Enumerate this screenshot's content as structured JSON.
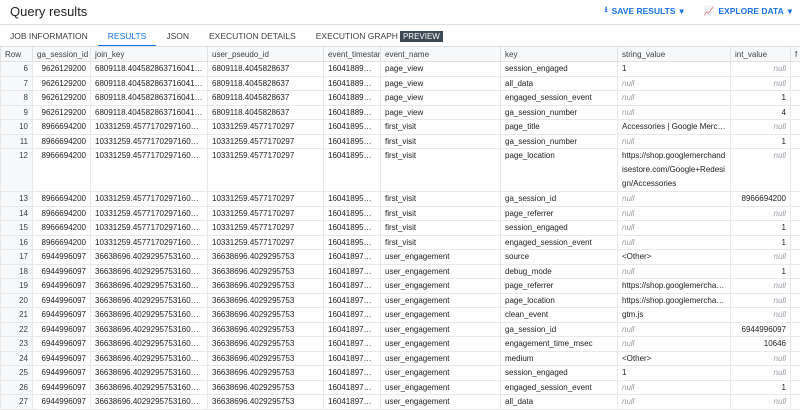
{
  "header": {
    "title": "Query results",
    "save_results": "SAVE RESULTS",
    "explore_data": "EXPLORE DATA"
  },
  "colors": {
    "accent": "#1a73e8",
    "badge": "#3c4a55"
  },
  "tabs": [
    "JOB INFORMATION",
    "RESULTS",
    "JSON",
    "EXECUTION DETAILS",
    "EXECUTION GRAPH"
  ],
  "tab_badge": "PREVIEW",
  "active_tab": "RESULTS",
  "columns": [
    "Row",
    "ga_session_id",
    "join_key",
    "user_pseudo_id",
    "event_timestam",
    "event_name",
    "key",
    "string_value",
    "int_value",
    "f"
  ],
  "rows": [
    [
      "6",
      "9626129200",
      "6809118.40458286371604188…",
      "6809118.4045828637",
      "160418893…",
      "page_view",
      "session_engaged",
      "1",
      "null"
    ],
    [
      "7",
      "9626129200",
      "6809118.40458286371604188…",
      "6809118.4045828637",
      "160418893…",
      "page_view",
      "all_data",
      "null",
      "null"
    ],
    [
      "8",
      "9626129200",
      "6809118.40458286371604188…",
      "6809118.4045828637",
      "160418893…",
      "page_view",
      "engaged_session_event",
      "null",
      "1"
    ],
    [
      "9",
      "9626129200",
      "6809118.40458286371604188…",
      "6809118.4045828637",
      "160418893…",
      "page_view",
      "ga_session_number",
      "null",
      "4"
    ],
    [
      "10",
      "8966694200",
      "10331259.4577170297160418…",
      "10331259.4577170297",
      "160418958…",
      "first_visit",
      "page_title",
      "Accessories | Google Merchan…",
      "null"
    ],
    [
      "11",
      "8966694200",
      "10331259.4577170297160418…",
      "10331259.4577170297",
      "160418958…",
      "first_visit",
      "ga_session_number",
      "null",
      "1"
    ],
    [
      "12",
      "8966694200",
      "10331259.4577170297160418…",
      "10331259.4577170297",
      "160418958…",
      "first_visit",
      "page_location",
      "https://shop.googlemerchandisestore.com/Google+Redesign/Accessories",
      "null"
    ],
    [
      "13",
      "8966694200",
      "10331259.4577170297160418…",
      "10331259.4577170297",
      "160418958…",
      "first_visit",
      "ga_session_id",
      "null",
      "8966694200"
    ],
    [
      "14",
      "8966694200",
      "10331259.4577170297160418…",
      "10331259.4577170297",
      "160418958…",
      "first_visit",
      "page_referrer",
      "null",
      "null"
    ],
    [
      "15",
      "8966694200",
      "10331259.4577170297160418…",
      "10331259.4577170297",
      "160418958…",
      "first_visit",
      "session_engaged",
      "null",
      "1"
    ],
    [
      "16",
      "8966694200",
      "10331259.4577170297160418…",
      "10331259.4577170297",
      "160418958…",
      "first_visit",
      "engaged_session_event",
      "null",
      "1"
    ],
    [
      "17",
      "6944996097",
      "36638696.4029295753160418…",
      "36638696.4029295753",
      "160418970…",
      "user_engagement",
      "source",
      "<Other>",
      "null"
    ],
    [
      "18",
      "6944996097",
      "36638696.4029295753160418…",
      "36638696.4029295753",
      "160418970…",
      "user_engagement",
      "debug_mode",
      "null",
      "1"
    ],
    [
      "19",
      "6944996097",
      "36638696.4029295753160418…",
      "36638696.4029295753",
      "160418970…",
      "user_engagement",
      "page_referrer",
      "https://shop.googlemerchandi…",
      "null"
    ],
    [
      "20",
      "6944996097",
      "36638696.4029295753160418…",
      "36638696.4029295753",
      "160418970…",
      "user_engagement",
      "page_location",
      "https://shop.googlemerchandi…",
      "null"
    ],
    [
      "21",
      "6944996097",
      "36638696.4029295753160418…",
      "36638696.4029295753",
      "160418970…",
      "user_engagement",
      "clean_event",
      "gtm.js",
      "null"
    ],
    [
      "22",
      "6944996097",
      "36638696.4029295753160418…",
      "36638696.4029295753",
      "160418970…",
      "user_engagement",
      "ga_session_id",
      "null",
      "6944996097"
    ],
    [
      "23",
      "6944996097",
      "36638696.4029295753160418…",
      "36638696.4029295753",
      "160418970…",
      "user_engagement",
      "engagement_time_msec",
      "null",
      "10646"
    ],
    [
      "24",
      "6944996097",
      "36638696.4029295753160418…",
      "36638696.4029295753",
      "160418970…",
      "user_engagement",
      "medium",
      "<Other>",
      "null"
    ],
    [
      "25",
      "6944996097",
      "36638696.4029295753160418…",
      "36638696.4029295753",
      "160418970…",
      "user_engagement",
      "session_engaged",
      "1",
      "null"
    ],
    [
      "26",
      "6944996097",
      "36638696.4029295753160418…",
      "36638696.4029295753",
      "160418970…",
      "user_engagement",
      "engaged_session_event",
      "null",
      "1"
    ],
    [
      "27",
      "6944996097",
      "36638696.4029295753160418…",
      "36638696.4029295753",
      "160418970…",
      "user_engagement",
      "all_data",
      "null",
      "null"
    ]
  ]
}
